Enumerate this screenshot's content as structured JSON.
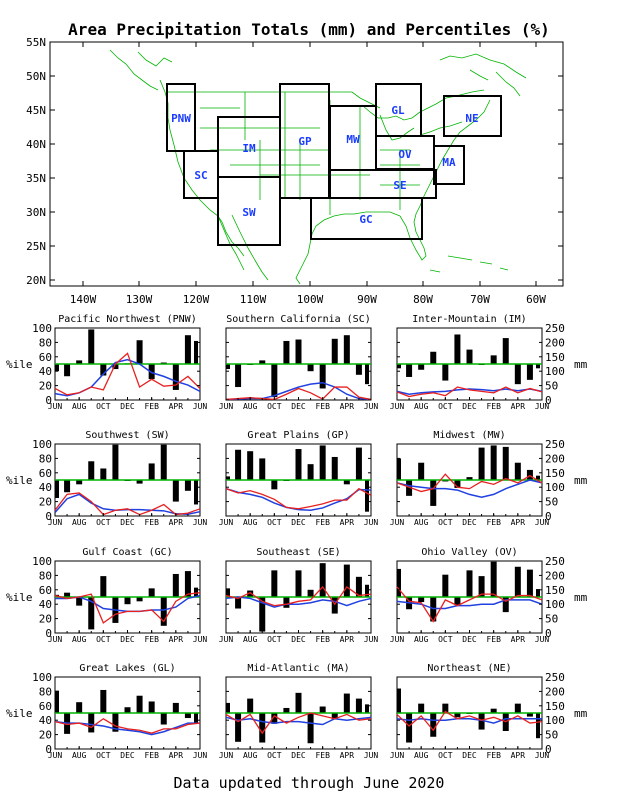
{
  "title": "Area Precipitation Totals (mm) and Percentiles (%)",
  "footer": "Data updated through June 2020",
  "colors": {
    "map_lines": "#00b400",
    "region_label": "#1a3cff",
    "region_box": "#000000",
    "bar": "#000000",
    "pct_line": "#00b400",
    "observed_line": "#e82020",
    "normal_line": "#2040e0"
  },
  "map": {
    "lat_ticks": [
      "55N",
      "50N",
      "45N",
      "40N",
      "35N",
      "30N",
      "25N",
      "20N"
    ],
    "lon_ticks": [
      "140W",
      "130W",
      "120W",
      "110W",
      "100W",
      "90W",
      "80W",
      "70W",
      "60W"
    ],
    "region_labels": [
      "PNW",
      "SC",
      "IM",
      "SW",
      "GP",
      "MW",
      "GL",
      "OV",
      "SE",
      "GC",
      "MA",
      "NE"
    ]
  },
  "axis": {
    "pct_label": "%ile",
    "mm_label": "mm",
    "pct_ticks": [
      "100",
      "80",
      "60",
      "40",
      "20",
      "0"
    ],
    "mm_ticks": [
      "250",
      "200",
      "150",
      "100",
      "50",
      "0"
    ],
    "month_ticks": [
      "JUN",
      "AUG",
      "OCT",
      "DEC",
      "FEB",
      "APR",
      "JUN"
    ]
  },
  "chart_data": [
    {
      "type": "bar",
      "title": "Pacific Northwest (PNW)",
      "x": [
        "JUN",
        "JUL",
        "AUG",
        "SEP",
        "OCT",
        "NOV",
        "DEC",
        "JAN",
        "FEB",
        "MAR",
        "APR",
        "MAY",
        "JUN"
      ],
      "percentile": [
        40,
        33,
        55,
        98,
        34,
        43,
        51,
        83,
        29,
        52,
        14,
        90,
        82
      ],
      "observed_mm": [
        40,
        18,
        25,
        45,
        35,
        125,
        162,
        45,
        72,
        48,
        52,
        82,
        40
      ],
      "normal_mm": [
        22,
        15,
        25,
        45,
        90,
        130,
        140,
        125,
        95,
        82,
        65,
        52,
        30
      ],
      "ylim_pct": [
        0,
        100
      ],
      "ylim_mm": [
        0,
        250
      ]
    },
    {
      "type": "bar",
      "title": "Southern California (SC)",
      "x": [
        "JUN",
        "JUL",
        "AUG",
        "SEP",
        "OCT",
        "NOV",
        "DEC",
        "JAN",
        "FEB",
        "MAR",
        "APR",
        "MAY",
        "JUN"
      ],
      "percentile": [
        43,
        18,
        50,
        55,
        4,
        82,
        84,
        40,
        16,
        85,
        90,
        35,
        22
      ],
      "observed_mm": [
        2,
        5,
        8,
        5,
        2,
        20,
        40,
        25,
        3,
        45,
        45,
        10,
        2
      ],
      "normal_mm": [
        2,
        3,
        5,
        5,
        15,
        30,
        45,
        55,
        60,
        45,
        20,
        5,
        2
      ],
      "ylim_pct": [
        0,
        100
      ],
      "ylim_mm": [
        0,
        250
      ]
    },
    {
      "type": "bar",
      "title": "Inter-Mountain (IM)",
      "x": [
        "JUN",
        "JUL",
        "AUG",
        "SEP",
        "OCT",
        "NOV",
        "DEC",
        "JAN",
        "FEB",
        "MAR",
        "APR",
        "MAY",
        "JUN"
      ],
      "percentile": [
        44,
        32,
        42,
        67,
        27,
        91,
        70,
        50,
        62,
        86,
        22,
        28,
        44
      ],
      "observed_mm": [
        28,
        12,
        20,
        25,
        15,
        45,
        35,
        30,
        25,
        45,
        25,
        40,
        28
      ],
      "normal_mm": [
        30,
        20,
        25,
        28,
        30,
        35,
        38,
        36,
        32,
        38,
        32,
        38,
        30
      ],
      "ylim_pct": [
        0,
        100
      ],
      "ylim_mm": [
        0,
        250
      ]
    },
    {
      "type": "bar",
      "title": "Southwest (SW)",
      "x": [
        "JUN",
        "JUL",
        "AUG",
        "SEP",
        "OCT",
        "NOV",
        "DEC",
        "JAN",
        "FEB",
        "MAR",
        "APR",
        "MAY",
        "JUN"
      ],
      "percentile": [
        25,
        33,
        44,
        76,
        66,
        99,
        50,
        45,
        73,
        99,
        20,
        35,
        16
      ],
      "observed_mm": [
        20,
        75,
        80,
        50,
        5,
        20,
        25,
        5,
        20,
        40,
        5,
        10,
        25
      ],
      "normal_mm": [
        12,
        60,
        75,
        45,
        25,
        20,
        22,
        22,
        20,
        18,
        8,
        6,
        15
      ],
      "ylim_pct": [
        0,
        100
      ],
      "ylim_mm": [
        0,
        250
      ]
    },
    {
      "type": "bar",
      "title": "Great Plains (GP)",
      "x": [
        "JUN",
        "JUL",
        "AUG",
        "SEP",
        "OCT",
        "NOV",
        "DEC",
        "JAN",
        "FEB",
        "MAR",
        "APR",
        "MAY",
        "JUN"
      ],
      "percentile": [
        55,
        92,
        90,
        80,
        37,
        49,
        93,
        72,
        98,
        82,
        44,
        95,
        6
      ],
      "observed_mm": [
        95,
        80,
        88,
        75,
        58,
        30,
        25,
        33,
        42,
        55,
        55,
        95,
        72
      ],
      "normal_mm": [
        95,
        82,
        75,
        65,
        45,
        30,
        22,
        20,
        28,
        45,
        60,
        92,
        90
      ],
      "ylim_pct": [
        0,
        100
      ],
      "ylim_mm": [
        0,
        250
      ]
    },
    {
      "type": "bar",
      "title": "Midwest (MW)",
      "x": [
        "JUN",
        "JUL",
        "AUG",
        "SEP",
        "OCT",
        "NOV",
        "DEC",
        "JAN",
        "FEB",
        "MAR",
        "APR",
        "MAY",
        "JUN"
      ],
      "percentile": [
        80,
        28,
        74,
        14,
        48,
        39,
        54,
        95,
        98,
        96,
        74,
        64,
        56
      ],
      "observed_mm": [
        115,
        100,
        85,
        95,
        145,
        100,
        95,
        120,
        110,
        130,
        115,
        140,
        115
      ],
      "normal_mm": [
        115,
        105,
        100,
        95,
        95,
        90,
        75,
        65,
        75,
        95,
        110,
        125,
        115
      ],
      "ylim_pct": [
        0,
        100
      ],
      "ylim_mm": [
        0,
        250
      ]
    },
    {
      "type": "bar",
      "title": "Gulf Coast (GC)",
      "x": [
        "JUN",
        "JUL",
        "AUG",
        "SEP",
        "OCT",
        "NOV",
        "DEC",
        "JAN",
        "FEB",
        "MAR",
        "APR",
        "MAY",
        "JUN"
      ],
      "percentile": [
        53,
        56,
        38,
        5,
        79,
        14,
        40,
        44,
        62,
        10,
        82,
        86,
        63
      ],
      "observed_mm": [
        130,
        120,
        125,
        135,
        35,
        65,
        75,
        75,
        80,
        40,
        110,
        135,
        140
      ],
      "normal_mm": [
        120,
        120,
        125,
        110,
        85,
        80,
        75,
        75,
        80,
        80,
        90,
        120,
        130
      ],
      "ylim_pct": [
        0,
        100
      ],
      "ylim_mm": [
        0,
        250
      ]
    },
    {
      "type": "bar",
      "title": "Southeast (SE)",
      "x": [
        "JUN",
        "JUL",
        "AUG",
        "SEP",
        "OCT",
        "NOV",
        "DEC",
        "JAN",
        "FEB",
        "MAR",
        "APR",
        "MAY",
        "JUN"
      ],
      "percentile": [
        62,
        34,
        59,
        2,
        87,
        35,
        87,
        60,
        97,
        27,
        95,
        78,
        67
      ],
      "observed_mm": [
        130,
        120,
        140,
        110,
        95,
        100,
        110,
        115,
        160,
        100,
        160,
        130,
        135
      ],
      "normal_mm": [
        120,
        125,
        120,
        105,
        90,
        100,
        100,
        105,
        115,
        110,
        95,
        110,
        120
      ],
      "ylim_pct": [
        0,
        100
      ],
      "ylim_mm": [
        0,
        250
      ]
    },
    {
      "type": "bar",
      "title": "Ohio Valley (OV)",
      "x": [
        "JUN",
        "JUL",
        "AUG",
        "SEP",
        "OCT",
        "NOV",
        "DEC",
        "JAN",
        "FEB",
        "MAR",
        "APR",
        "MAY",
        "JUN"
      ],
      "percentile": [
        89,
        33,
        43,
        16,
        81,
        39,
        87,
        79,
        99,
        29,
        92,
        88,
        61
      ],
      "observed_mm": [
        160,
        110,
        105,
        40,
        115,
        95,
        115,
        135,
        135,
        110,
        130,
        130,
        115
      ],
      "normal_mm": [
        110,
        105,
        100,
        85,
        85,
        95,
        95,
        100,
        100,
        115,
        115,
        115,
        100
      ],
      "ylim_pct": [
        0,
        100
      ],
      "ylim_mm": [
        0,
        250
      ]
    },
    {
      "type": "bar",
      "title": "Great Lakes (GL)",
      "x": [
        "JUN",
        "JUL",
        "AUG",
        "SEP",
        "OCT",
        "NOV",
        "DEC",
        "JAN",
        "FEB",
        "MAR",
        "APR",
        "MAY",
        "JUN"
      ],
      "percentile": [
        81,
        21,
        65,
        23,
        82,
        24,
        58,
        74,
        66,
        34,
        64,
        43,
        35
      ],
      "observed_mm": [
        95,
        85,
        90,
        75,
        105,
        80,
        70,
        65,
        55,
        70,
        70,
        85,
        90
      ],
      "normal_mm": [
        95,
        90,
        90,
        85,
        80,
        70,
        65,
        60,
        50,
        60,
        75,
        90,
        90
      ],
      "ylim_pct": [
        0,
        100
      ],
      "ylim_mm": [
        0,
        250
      ]
    },
    {
      "type": "bar",
      "title": "Mid-Atlantic (MA)",
      "x": [
        "JUN",
        "JUL",
        "AUG",
        "SEP",
        "OCT",
        "NOV",
        "DEC",
        "JAN",
        "FEB",
        "MAR",
        "APR",
        "MAY",
        "JUN"
      ],
      "percentile": [
        64,
        10,
        70,
        9,
        35,
        57,
        78,
        8,
        59,
        41,
        77,
        70,
        62
      ],
      "observed_mm": [
        120,
        95,
        120,
        55,
        115,
        90,
        110,
        125,
        115,
        105,
        120,
        100,
        105
      ],
      "normal_mm": [
        110,
        100,
        105,
        95,
        90,
        95,
        95,
        90,
        85,
        105,
        100,
        105,
        110
      ],
      "ylim_pct": [
        0,
        100
      ],
      "ylim_mm": [
        0,
        250
      ]
    },
    {
      "type": "bar",
      "title": "Northeast (NE)",
      "x": [
        "JUN",
        "JUL",
        "AUG",
        "SEP",
        "OCT",
        "NOV",
        "DEC",
        "JAN",
        "FEB",
        "MAR",
        "APR",
        "MAY",
        "JUN"
      ],
      "percentile": [
        84,
        9,
        63,
        17,
        63,
        44,
        49,
        27,
        56,
        25,
        63,
        45,
        15
      ],
      "observed_mm": [
        120,
        80,
        115,
        65,
        130,
        105,
        115,
        100,
        110,
        95,
        115,
        90,
        95
      ],
      "normal_mm": [
        105,
        100,
        105,
        100,
        100,
        105,
        105,
        100,
        90,
        105,
        105,
        105,
        105
      ],
      "ylim_pct": [
        0,
        100
      ],
      "ylim_mm": [
        0,
        250
      ]
    }
  ]
}
